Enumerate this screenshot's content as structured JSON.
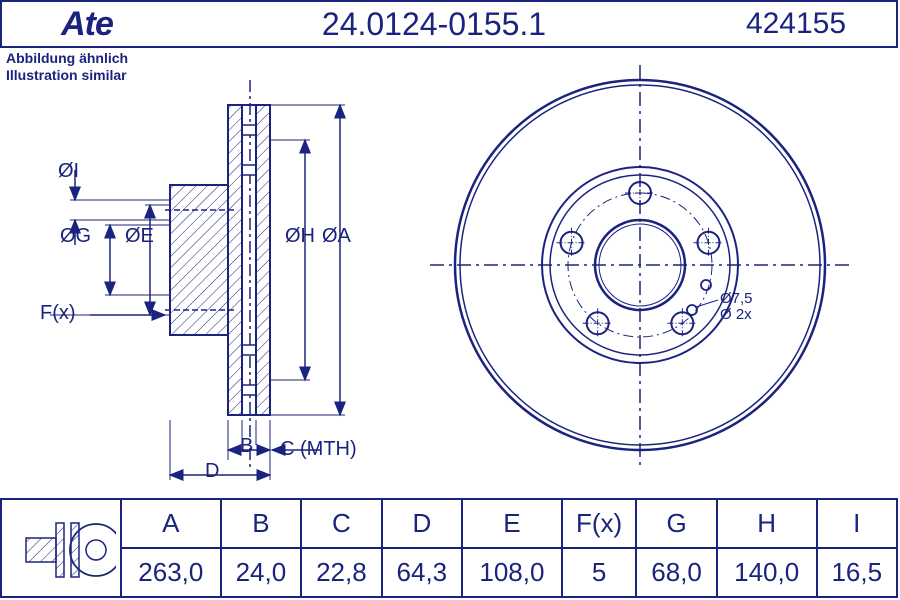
{
  "header": {
    "logo": "Ate",
    "part_number": "24.0124-0155.1",
    "alt_number": "424155"
  },
  "subtitle": {
    "line1": "Abbildung ähnlich",
    "line2": "Illustration similar"
  },
  "front_view": {
    "outer_diameter": 263.0,
    "inner_bore": 68.0,
    "bolt_circle": 108.0,
    "bolt_hole_diameter": 16.5,
    "num_bolts": 5,
    "locator_holes": {
      "count": 2,
      "diameter": 7.5
    },
    "colors": {
      "stroke": "#1a237e",
      "stroke_width": 2,
      "hatch": "#1a237e"
    }
  },
  "labels": {
    "diaA": "ØA",
    "diaH": "ØH",
    "diaE": "ØE",
    "diaG": "ØG",
    "diaI": "ØI",
    "Fx": "F(x)",
    "B": "B",
    "C": "C (MTH)",
    "D": "D",
    "locator": "Ø7,5",
    "locator2": "Ø 2x"
  },
  "table": {
    "headers": [
      "A",
      "B",
      "C",
      "D",
      "E",
      "F(x)",
      "G",
      "H",
      "I"
    ],
    "values": [
      "263,0",
      "24,0",
      "22,8",
      "64,3",
      "108,0",
      "5",
      "68,0",
      "140,0",
      "16,5"
    ]
  },
  "colors": {
    "primary": "#1a237e",
    "background": "#ffffff"
  }
}
